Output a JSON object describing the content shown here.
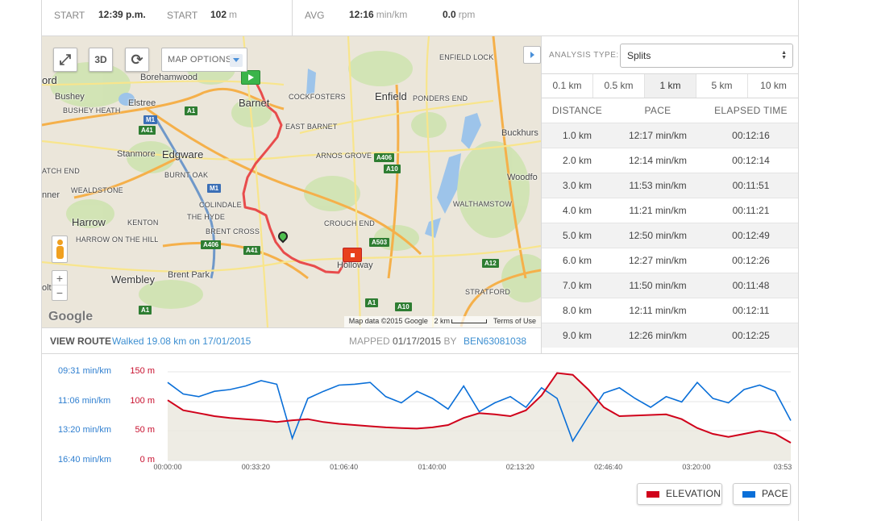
{
  "stats": {
    "start_time_label": "START",
    "start_time_value": "12:39 p.m.",
    "start_elev_label": "START",
    "start_elev_value": "102",
    "start_elev_unit": "m",
    "avg_label": "AVG",
    "avg_pace_value": "12:16",
    "avg_pace_unit": "min/km",
    "cadence_value": "0.0",
    "cadence_unit": "rpm"
  },
  "map": {
    "controls": {
      "fullscreen_icon": "fullscreen-icon",
      "threed_label": "3D",
      "rotate_icon": "rotate-icon",
      "options_label": "MAP OPTIONS",
      "zoom_in": "+",
      "zoom_out": "−"
    },
    "labels": [
      {
        "text": "ord",
        "cls": "big"
      },
      {
        "text": "Borehamwood",
        "cls": ""
      },
      {
        "text": "Bushey",
        "cls": ""
      },
      {
        "text": "BUSHEY HEATH",
        "cls": "small"
      },
      {
        "text": "Elstree",
        "cls": ""
      },
      {
        "text": "Barnet",
        "cls": "big"
      },
      {
        "text": "COCKFOSTERS",
        "cls": "small"
      },
      {
        "text": "ENFIELD LOCK",
        "cls": "small"
      },
      {
        "text": "Enfield",
        "cls": "big"
      },
      {
        "text": "PONDERS END",
        "cls": "small"
      },
      {
        "text": "EAST BARNET",
        "cls": "small"
      },
      {
        "text": "Buckhurs",
        "cls": ""
      },
      {
        "text": "Stanmore",
        "cls": ""
      },
      {
        "text": "Edgware",
        "cls": "big"
      },
      {
        "text": "ARNOS GROVE",
        "cls": "small"
      },
      {
        "text": "ATCH END",
        "cls": "small"
      },
      {
        "text": "BURNT OAK",
        "cls": "small"
      },
      {
        "text": "Woodfo",
        "cls": ""
      },
      {
        "text": "WEALDSTONE",
        "cls": "small"
      },
      {
        "text": "COLINDALE",
        "cls": "small"
      },
      {
        "text": "WALTHAMSTOW",
        "cls": "small"
      },
      {
        "text": "nner",
        "cls": ""
      },
      {
        "text": "Harrow",
        "cls": "big"
      },
      {
        "text": "THE HYDE",
        "cls": "small"
      },
      {
        "text": "KENTON",
        "cls": "small"
      },
      {
        "text": "CROUCH END",
        "cls": "small"
      },
      {
        "text": "BRENT CROSS",
        "cls": "small"
      },
      {
        "text": "HARROW ON THE HILL",
        "cls": "small"
      },
      {
        "text": "Holloway",
        "cls": ""
      },
      {
        "text": "Wembley",
        "cls": "big"
      },
      {
        "text": "Brent Park",
        "cls": ""
      },
      {
        "text": "STRATFORD",
        "cls": "small"
      },
      {
        "text": "olt",
        "cls": ""
      }
    ],
    "shields": [
      "A1",
      "M1",
      "A41",
      "A406",
      "A10",
      "M1",
      "A406",
      "A41",
      "A503",
      "A12",
      "A1",
      "A10",
      "A1"
    ],
    "google_logo": "Google",
    "map_data": "Map data ©2015 Google",
    "scale": "2 km",
    "terms": "Terms of Use"
  },
  "panel": {
    "analysis_label": "ANALYSIS TYPE:",
    "analysis_value": "Splits",
    "tabs": [
      {
        "label": "0.1 km",
        "active": false
      },
      {
        "label": "0.5 km",
        "active": false
      },
      {
        "label": "1 km",
        "active": true
      },
      {
        "label": "5 km",
        "active": false
      },
      {
        "label": "10 km",
        "active": false
      }
    ],
    "columns": [
      "DISTANCE",
      "PACE",
      "ELAPSED TIME"
    ],
    "rows": [
      {
        "distance": "1.0 km",
        "pace": "12:17 min/km",
        "elapsed": "00:12:16"
      },
      {
        "distance": "2.0 km",
        "pace": "12:14 min/km",
        "elapsed": "00:12:14"
      },
      {
        "distance": "3.0 km",
        "pace": "11:53 min/km",
        "elapsed": "00:11:51"
      },
      {
        "distance": "4.0 km",
        "pace": "11:21 min/km",
        "elapsed": "00:11:21"
      },
      {
        "distance": "5.0 km",
        "pace": "12:50 min/km",
        "elapsed": "00:12:49"
      },
      {
        "distance": "6.0 km",
        "pace": "12:27 min/km",
        "elapsed": "00:12:26"
      },
      {
        "distance": "7.0 km",
        "pace": "11:50 min/km",
        "elapsed": "00:11:48"
      },
      {
        "distance": "8.0 km",
        "pace": "12:11 min/km",
        "elapsed": "00:12:11"
      },
      {
        "distance": "9.0 km",
        "pace": "12:26 min/km",
        "elapsed": "00:12:25"
      }
    ]
  },
  "route": {
    "view_label": "VIEW ROUTE",
    "walked_link": "Walked 19.08 km on 17/01/2015",
    "mapped_label": "MAPPED",
    "mapped_date": "01/17/2015",
    "by_label": "BY",
    "user_link": "BEN63081038"
  },
  "chart_data": {
    "type": "line",
    "pace_ticks": [
      "09:31 min/km",
      "11:06 min/km",
      "13:20 min/km",
      "16:40 min/km"
    ],
    "elevation_ticks": [
      "150 m",
      "100 m",
      "50 m",
      "0 m"
    ],
    "x_ticks": [
      "00:00:00",
      "00:33:20",
      "01:06:40",
      "01:40:00",
      "02:13:20",
      "02:46:40",
      "03:20:00",
      "03:53"
    ],
    "elevation_m": [
      102,
      85,
      80,
      75,
      72,
      70,
      68,
      65,
      68,
      70,
      65,
      62,
      60,
      58,
      56,
      55,
      54,
      56,
      60,
      72,
      80,
      78,
      75,
      85,
      110,
      148,
      145,
      120,
      90,
      75,
      76,
      77,
      78,
      70,
      55,
      45,
      40,
      45,
      50,
      45,
      30
    ],
    "pace_series": [
      88,
      75,
      72,
      78,
      80,
      84,
      90,
      86,
      25,
      70,
      78,
      85,
      86,
      88,
      72,
      65,
      78,
      70,
      58,
      84,
      55,
      65,
      72,
      60,
      82,
      70,
      22,
      50,
      76,
      82,
      70,
      60,
      72,
      66,
      88,
      70,
      65,
      80,
      85,
      78,
      45
    ],
    "series": [
      {
        "name": "ELEVATION",
        "color": "#d0021b"
      },
      {
        "name": "PACE",
        "color": "#0a6fd8"
      }
    ]
  },
  "legend": {
    "elevation_label": "ELEVATION",
    "pace_label": "PACE"
  }
}
